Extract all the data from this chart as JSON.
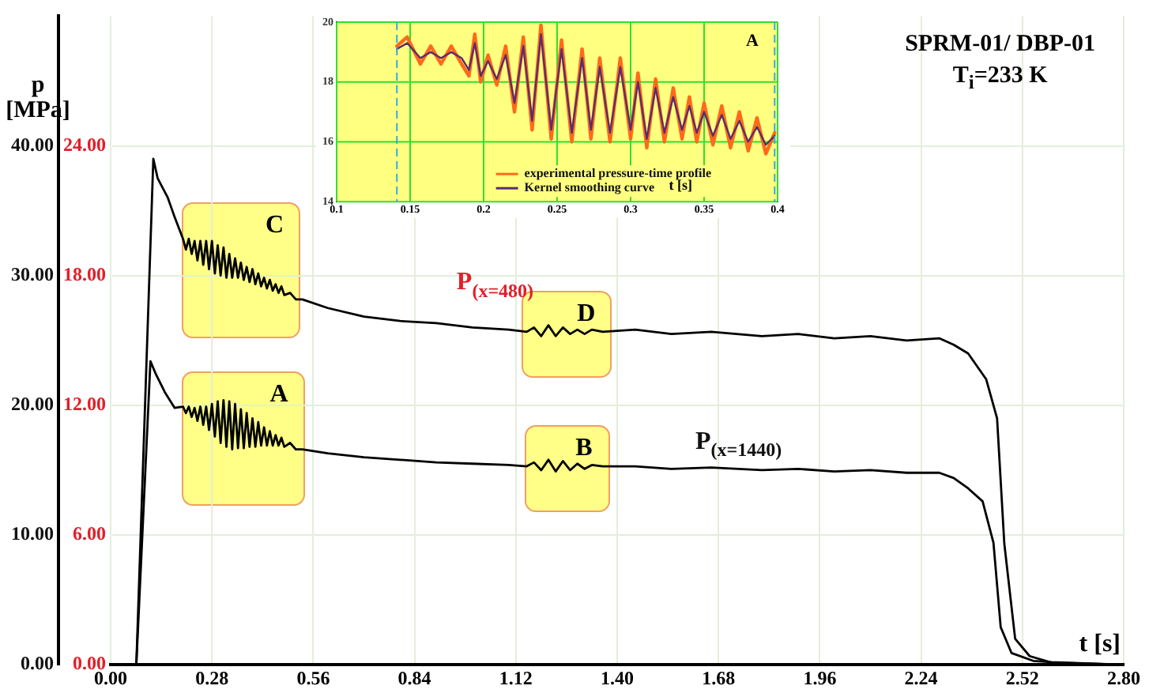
{
  "chart_data": [
    {
      "type": "line",
      "xlabel": "t [s]",
      "ylabel": "p [MPa]",
      "xlim": [
        0,
        2.8
      ],
      "xticks": [
        {
          "value": 0,
          "label": "0.00"
        },
        {
          "value": 0.28,
          "label": "0.28"
        },
        {
          "value": 0.56,
          "label": "0.56"
        },
        {
          "value": 0.84,
          "label": "0.84"
        },
        {
          "value": 1.12,
          "label": "1.12"
        },
        {
          "value": 1.4,
          "label": "1.40"
        },
        {
          "value": 1.68,
          "label": "1.68"
        },
        {
          "value": 1.96,
          "label": "1.96"
        },
        {
          "value": 2.24,
          "label": "2.24"
        },
        {
          "value": 2.52,
          "label": "2.52"
        },
        {
          "value": 2.8,
          "label": "2.80"
        }
      ],
      "ylim": [
        0,
        50
      ],
      "yticks": [
        {
          "value": 0,
          "label": "0.00"
        },
        {
          "value": 10,
          "label": "10.00"
        },
        {
          "value": 20,
          "label": "20.00"
        },
        {
          "value": 30,
          "label": "30.00"
        },
        {
          "value": 40,
          "label": "40.00"
        }
      ],
      "y2lim": [
        0,
        30
      ],
      "y2ticks": [
        {
          "value": 0,
          "label": "0.00"
        },
        {
          "value": 6,
          "label": "6.00"
        },
        {
          "value": 12,
          "label": "12.00"
        },
        {
          "value": 18,
          "label": "18.00"
        },
        {
          "value": 24,
          "label": "24.00"
        }
      ],
      "grid": true,
      "annotations": [
        "C",
        "A",
        "D",
        "B",
        "SPRM-01/ DBP-01",
        "T$_{i}$=233 K"
      ],
      "series": [
        {
          "name": "P$_{(x=480)}$",
          "color": "#000000",
          "axis": "y2",
          "x": [
            0,
            0.071,
            0.118,
            0.13,
            0.158,
            0.177,
            0.2,
            0.208,
            0.216,
            0.224,
            0.232,
            0.24,
            0.248,
            0.256,
            0.264,
            0.272,
            0.28,
            0.288,
            0.296,
            0.304,
            0.312,
            0.32,
            0.328,
            0.336,
            0.344,
            0.352,
            0.36,
            0.368,
            0.376,
            0.384,
            0.392,
            0.4,
            0.408,
            0.416,
            0.424,
            0.432,
            0.44,
            0.448,
            0.456,
            0.464,
            0.472,
            0.48,
            0.496,
            0.512,
            0.53,
            0.6,
            0.7,
            0.8,
            0.9,
            1.0,
            1.1,
            1.15,
            1.17,
            1.19,
            1.21,
            1.23,
            1.25,
            1.27,
            1.29,
            1.31,
            1.33,
            1.36,
            1.45,
            1.55,
            1.66,
            1.8,
            1.9,
            2.0,
            2.1,
            2.2,
            2.29,
            2.33,
            2.37,
            2.42,
            2.45,
            2.47,
            2.5,
            2.54,
            2.6,
            2.8
          ],
          "values": [
            0,
            0,
            23.4,
            22.5,
            21.6,
            20.7,
            19.7,
            19.2,
            19.7,
            19.0,
            19.6,
            18.7,
            19.6,
            18.5,
            19.6,
            18.3,
            19.6,
            18.1,
            19.4,
            18.0,
            19.3,
            17.9,
            19.0,
            17.9,
            18.8,
            17.9,
            18.6,
            17.8,
            18.4,
            17.7,
            18.3,
            17.6,
            18.1,
            17.5,
            17.9,
            17.4,
            17.8,
            17.3,
            17.6,
            17.2,
            17.5,
            17.1,
            17.2,
            16.9,
            16.9,
            16.5,
            16.1,
            15.9,
            15.8,
            15.6,
            15.5,
            15.4,
            15.6,
            15.2,
            15.7,
            15.2,
            15.6,
            15.3,
            15.5,
            15.3,
            15.5,
            15.4,
            15.5,
            15.3,
            15.4,
            15.2,
            15.3,
            15.1,
            15.2,
            15.0,
            15.1,
            14.8,
            14.4,
            13.2,
            11.4,
            5.6,
            1.2,
            0.4,
            0.1,
            0
          ]
        },
        {
          "name": "P$_{(x=1440)}$",
          "color": "#000000",
          "axis": "y",
          "x": [
            0,
            0.071,
            0.11,
            0.125,
            0.15,
            0.177,
            0.2,
            0.208,
            0.216,
            0.224,
            0.232,
            0.24,
            0.248,
            0.256,
            0.264,
            0.272,
            0.28,
            0.288,
            0.296,
            0.304,
            0.312,
            0.32,
            0.328,
            0.336,
            0.344,
            0.352,
            0.36,
            0.368,
            0.376,
            0.384,
            0.392,
            0.4,
            0.408,
            0.416,
            0.424,
            0.432,
            0.44,
            0.448,
            0.456,
            0.464,
            0.472,
            0.48,
            0.496,
            0.512,
            0.53,
            0.6,
            0.7,
            0.8,
            0.9,
            1.0,
            1.1,
            1.15,
            1.17,
            1.19,
            1.21,
            1.23,
            1.25,
            1.27,
            1.29,
            1.31,
            1.33,
            1.36,
            1.45,
            1.55,
            1.66,
            1.8,
            1.9,
            2.0,
            2.1,
            2.2,
            2.29,
            2.33,
            2.37,
            2.41,
            2.44,
            2.46,
            2.49,
            2.55,
            2.6,
            2.8
          ],
          "values": [
            0,
            0,
            23.4,
            22.4,
            21.0,
            19.8,
            19.9,
            19.4,
            19.9,
            19.1,
            19.8,
            18.8,
            19.9,
            18.5,
            19.9,
            18.1,
            20.1,
            17.6,
            20.3,
            17.1,
            20.4,
            16.8,
            20.3,
            16.6,
            20.1,
            16.7,
            19.7,
            16.7,
            19.4,
            16.8,
            19.0,
            16.8,
            18.7,
            16.9,
            18.3,
            16.9,
            18.0,
            16.9,
            17.7,
            16.9,
            17.5,
            16.8,
            17.1,
            16.6,
            16.6,
            16.3,
            16.0,
            15.8,
            15.6,
            15.5,
            15.4,
            15.3,
            15.6,
            15.0,
            15.8,
            14.9,
            15.7,
            15.0,
            15.5,
            15.1,
            15.4,
            15.3,
            15.3,
            15.1,
            15.2,
            15.0,
            15.1,
            14.9,
            15.0,
            14.8,
            14.8,
            14.4,
            13.6,
            12.6,
            9.4,
            2.9,
            0.9,
            0.3,
            0.2,
            0
          ]
        }
      ]
    },
    {
      "type": "line",
      "xlabel": "t [s]",
      "xlim": [
        0.1,
        0.4
      ],
      "xticks": [
        0.1,
        0.15,
        0.2,
        0.25,
        0.3,
        0.35,
        0.4
      ],
      "ylim": [
        14,
        20
      ],
      "yticks": [
        14,
        16,
        18,
        20
      ],
      "grid": true,
      "legend": "bottom right",
      "annotations": [
        "A"
      ],
      "ref_lines": [
        {
          "axis": "x",
          "value": 0.141,
          "color": "#33aadd",
          "line_style": "dashed"
        },
        {
          "axis": "x",
          "value": 0.398,
          "color": "#33aadd",
          "line_style": "dashed"
        }
      ],
      "series": [
        {
          "name": "experimental pressure-time profile",
          "color": "#ff6a1a",
          "x": [
            0.141,
            0.148,
            0.157,
            0.164,
            0.171,
            0.178,
            0.185,
            0.19,
            0.194,
            0.198,
            0.203,
            0.209,
            0.215,
            0.221,
            0.227,
            0.233,
            0.239,
            0.246,
            0.253,
            0.26,
            0.267,
            0.273,
            0.279,
            0.286,
            0.293,
            0.3,
            0.305,
            0.311,
            0.317,
            0.323,
            0.329,
            0.335,
            0.34,
            0.345,
            0.35,
            0.356,
            0.362,
            0.368,
            0.374,
            0.38,
            0.386,
            0.392,
            0.398
          ],
          "values": [
            19.2,
            19.5,
            18.6,
            19.2,
            18.6,
            19.2,
            18.6,
            18.2,
            19.6,
            18.0,
            18.9,
            17.9,
            19.2,
            17.0,
            19.5,
            16.4,
            19.9,
            16.1,
            19.4,
            16.0,
            19.1,
            16.1,
            18.8,
            16.0,
            18.8,
            16.1,
            18.3,
            15.8,
            18.1,
            16.0,
            17.8,
            16.1,
            17.5,
            16.0,
            17.3,
            15.9,
            17.2,
            15.8,
            17.0,
            15.7,
            16.8,
            15.6,
            16.3
          ]
        },
        {
          "name": "Kernel smoothing curve",
          "color": "#5a2d6e",
          "x": [
            0.141,
            0.148,
            0.157,
            0.164,
            0.171,
            0.178,
            0.185,
            0.19,
            0.194,
            0.198,
            0.203,
            0.209,
            0.215,
            0.221,
            0.227,
            0.233,
            0.239,
            0.246,
            0.253,
            0.26,
            0.267,
            0.273,
            0.279,
            0.286,
            0.293,
            0.3,
            0.305,
            0.311,
            0.317,
            0.323,
            0.329,
            0.335,
            0.34,
            0.345,
            0.35,
            0.356,
            0.362,
            0.368,
            0.374,
            0.38,
            0.386,
            0.392,
            0.398
          ],
          "values": [
            19.1,
            19.3,
            18.8,
            19.0,
            18.8,
            19.0,
            18.8,
            18.4,
            19.3,
            18.2,
            18.7,
            18.1,
            18.9,
            17.3,
            19.2,
            16.7,
            19.6,
            16.4,
            19.1,
            16.3,
            18.8,
            16.4,
            18.5,
            16.3,
            18.5,
            16.4,
            18.0,
            16.1,
            17.8,
            16.3,
            17.5,
            16.4,
            17.2,
            16.3,
            17.0,
            16.2,
            16.9,
            16.1,
            16.7,
            16.0,
            16.5,
            15.9,
            16.2
          ]
        }
      ]
    }
  ]
}
